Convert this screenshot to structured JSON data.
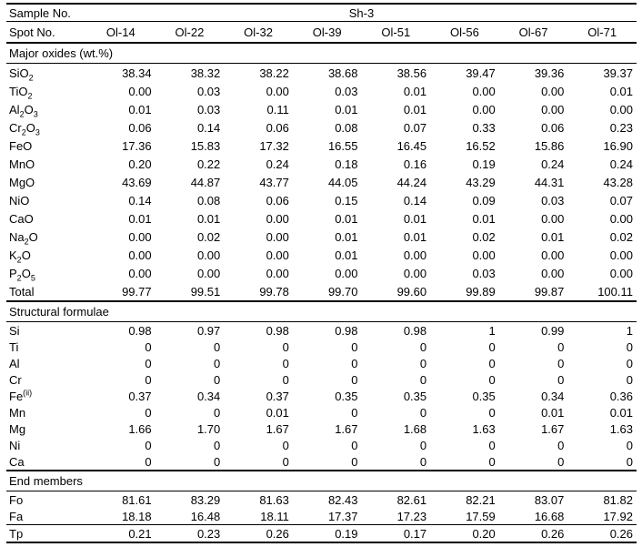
{
  "table": {
    "sample_label": "Sample No.",
    "sample_value": "Sh-3",
    "spot_label": "Spot No.",
    "spots": [
      "Ol-14",
      "Ol-22",
      "Ol-32",
      "Ol-39",
      "Ol-51",
      "Ol-56",
      "Ol-67",
      "Ol-71"
    ],
    "text_color": "#000000",
    "rule_color": "#000000",
    "sections": [
      {
        "title": "Major oxides (wt.%)",
        "rows": [
          {
            "label": "SiO_2",
            "values": [
              "38.34",
              "38.32",
              "38.22",
              "38.68",
              "38.56",
              "39.47",
              "39.36",
              "39.37"
            ]
          },
          {
            "label": "TiO_2",
            "values": [
              "0.00",
              "0.03",
              "0.00",
              "0.03",
              "0.01",
              "0.00",
              "0.00",
              "0.01"
            ]
          },
          {
            "label": "Al_2O_3",
            "values": [
              "0.01",
              "0.03",
              "0.11",
              "0.01",
              "0.01",
              "0.00",
              "0.00",
              "0.00"
            ]
          },
          {
            "label": "Cr_2O_3",
            "values": [
              "0.06",
              "0.14",
              "0.06",
              "0.08",
              "0.07",
              "0.33",
              "0.06",
              "0.23"
            ]
          },
          {
            "label": "FeO",
            "values": [
              "17.36",
              "15.83",
              "17.32",
              "16.55",
              "16.45",
              "16.52",
              "15.86",
              "16.90"
            ]
          },
          {
            "label": "MnO",
            "values": [
              "0.20",
              "0.22",
              "0.24",
              "0.18",
              "0.16",
              "0.19",
              "0.24",
              "0.24"
            ]
          },
          {
            "label": "MgO",
            "values": [
              "43.69",
              "44.87",
              "43.77",
              "44.05",
              "44.24",
              "43.29",
              "44.31",
              "43.28"
            ]
          },
          {
            "label": "NiO",
            "values": [
              "0.14",
              "0.08",
              "0.06",
              "0.15",
              "0.14",
              "0.09",
              "0.03",
              "0.07"
            ]
          },
          {
            "label": "CaO",
            "values": [
              "0.01",
              "0.01",
              "0.00",
              "0.01",
              "0.01",
              "0.01",
              "0.00",
              "0.00"
            ]
          },
          {
            "label": "Na_2O",
            "values": [
              "0.00",
              "0.02",
              "0.00",
              "0.01",
              "0.01",
              "0.02",
              "0.01",
              "0.02"
            ]
          },
          {
            "label": "K_2O",
            "values": [
              "0.00",
              "0.00",
              "0.00",
              "0.01",
              "0.00",
              "0.00",
              "0.00",
              "0.00"
            ]
          },
          {
            "label": "P_2O_5",
            "values": [
              "0.00",
              "0.00",
              "0.00",
              "0.00",
              "0.00",
              "0.03",
              "0.00",
              "0.00"
            ]
          },
          {
            "label": "Total",
            "values": [
              "99.77",
              "99.51",
              "99.78",
              "99.70",
              "99.60",
              "99.89",
              "99.87",
              "100.11"
            ]
          }
        ]
      },
      {
        "title": "Structural formulae",
        "rows": [
          {
            "label": "Si",
            "values": [
              "0.98",
              "0.97",
              "0.98",
              "0.98",
              "0.98",
              "1",
              "0.99",
              "1"
            ]
          },
          {
            "label": "Ti",
            "values": [
              "0",
              "0",
              "0",
              "0",
              "0",
              "0",
              "0",
              "0"
            ]
          },
          {
            "label": "Al",
            "values": [
              "0",
              "0",
              "0",
              "0",
              "0",
              "0",
              "0",
              "0"
            ]
          },
          {
            "label": "Cr",
            "values": [
              "0",
              "0",
              "0",
              "0",
              "0",
              "0",
              "0",
              "0"
            ]
          },
          {
            "label": "Fe^(ii)",
            "values": [
              "0.37",
              "0.34",
              "0.37",
              "0.35",
              "0.35",
              "0.35",
              "0.34",
              "0.36"
            ]
          },
          {
            "label": "Mn",
            "values": [
              "0",
              "0",
              "0.01",
              "0",
              "0",
              "0",
              "0.01",
              "0.01"
            ]
          },
          {
            "label": "Mg",
            "values": [
              "1.66",
              "1.70",
              "1.67",
              "1.67",
              "1.68",
              "1.63",
              "1.67",
              "1.63"
            ]
          },
          {
            "label": "Ni",
            "values": [
              "0",
              "0",
              "0",
              "0",
              "0",
              "0",
              "0",
              "0"
            ]
          },
          {
            "label": "Ca",
            "values": [
              "0",
              "0",
              "0",
              "0",
              "0",
              "0",
              "0",
              "0"
            ]
          }
        ]
      },
      {
        "title": "End members",
        "rows": [
          {
            "label": "Fo",
            "values": [
              "81.61",
              "83.29",
              "81.63",
              "82.43",
              "82.61",
              "82.21",
              "83.07",
              "81.82"
            ]
          },
          {
            "label": "Fa",
            "values": [
              "18.18",
              "16.48",
              "18.11",
              "17.37",
              "17.23",
              "17.59",
              "16.68",
              "17.92"
            ],
            "rule_below": true
          },
          {
            "label": "Tp",
            "values": [
              "0.21",
              "0.23",
              "0.26",
              "0.19",
              "0.17",
              "0.20",
              "0.26",
              "0.26"
            ]
          }
        ]
      }
    ]
  }
}
